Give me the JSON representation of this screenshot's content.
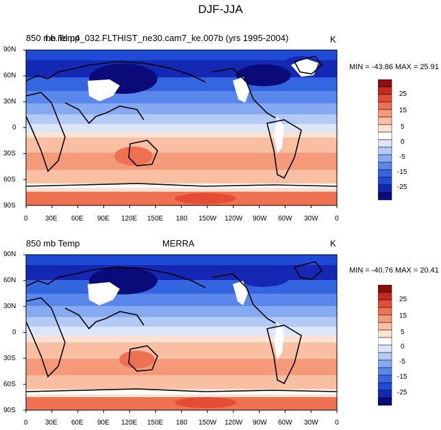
{
  "main_title": "DJF-JJA",
  "colors": {
    "palette": [
      "#0a0a78",
      "#1428b4",
      "#1f4ad6",
      "#3366e0",
      "#5a87eb",
      "#86aaf2",
      "#b3caf6",
      "#dbe6fb",
      "#ffffff",
      "#fde1d2",
      "#f9bfa3",
      "#f49a78",
      "#ee7252",
      "#e44c34",
      "#c62a1e",
      "#8c0e0e"
    ],
    "land": "#ffffff",
    "coast": "#000000"
  },
  "colorbar": {
    "labels": [
      "25",
      "15",
      "5",
      "0",
      "-5",
      "-15",
      "-25"
    ]
  },
  "lat_labels": [
    "90N",
    "60N",
    "30N",
    "0",
    "30S",
    "60S",
    "90S"
  ],
  "lon_labels": [
    "0",
    "30E",
    "60E",
    "90E",
    "120E",
    "150E",
    "180",
    "150W",
    "120W",
    "90W",
    "60W",
    "30W",
    "0"
  ],
  "panels": [
    {
      "id": "top",
      "left_label": "850 mb Temp",
      "center_label": "f.e.rel.p4_032.FLTHIST_ne30.cam7_ke.007b (yrs 1995-2004)",
      "units": "K",
      "minmax": "MIN = -43.86 MAX =  25.91"
    },
    {
      "id": "bottom",
      "left_label": "850 mb Temp",
      "center_label": "MERRA",
      "units": "K",
      "minmax": "MIN = -40.76 MAX =  20.41"
    }
  ]
}
